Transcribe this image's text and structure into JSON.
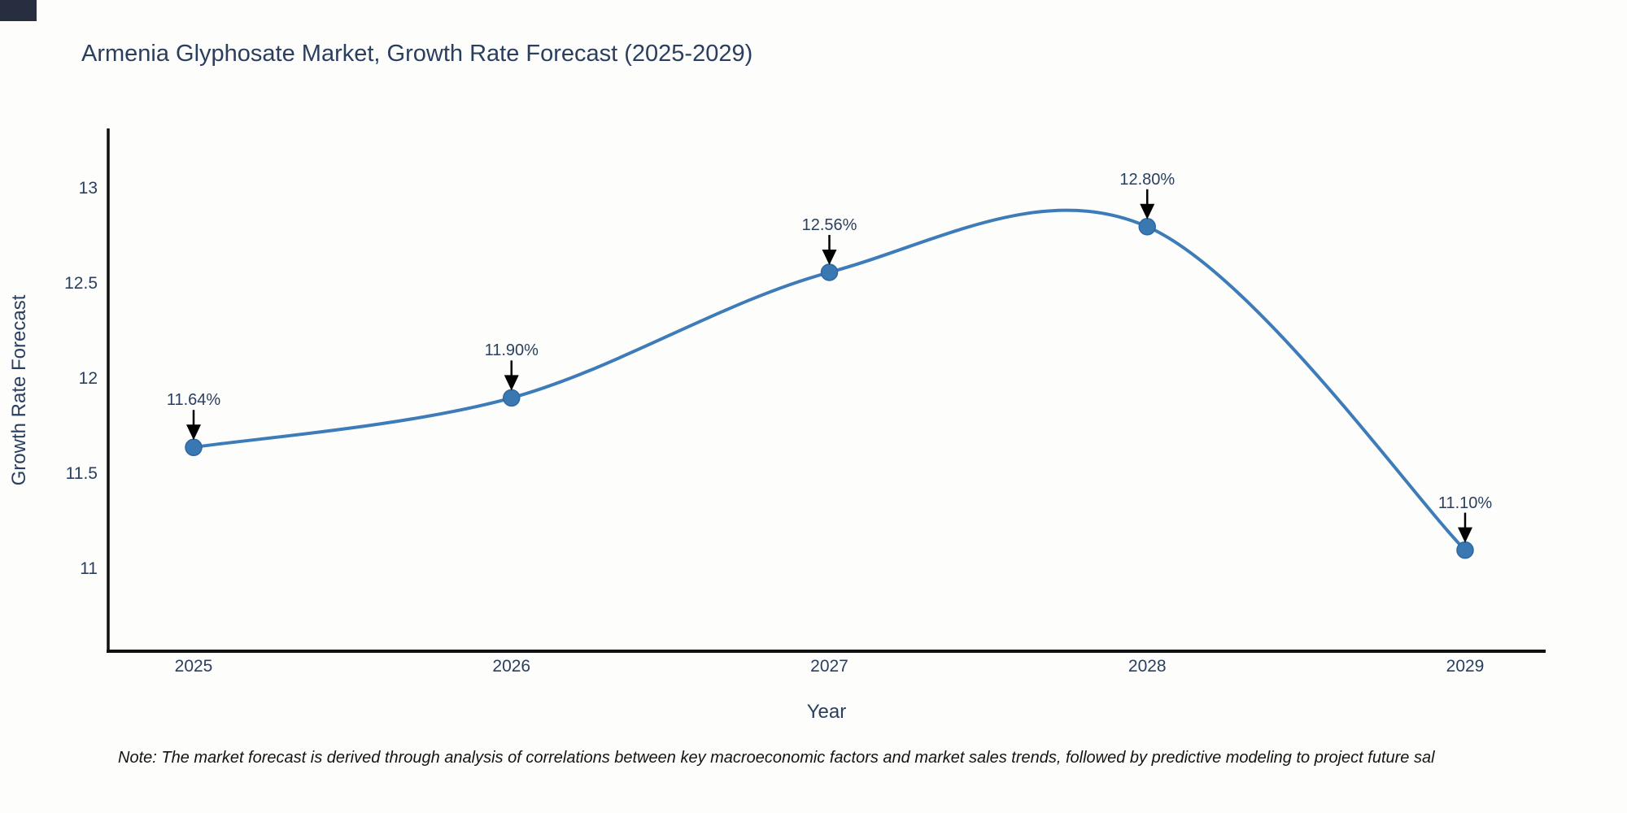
{
  "title": "Armenia Glyphosate Market, Growth Rate Forecast (2025-2029)",
  "note": "Note: The market forecast is derived through analysis of correlations between key macroeconomic factors and market sales trends, followed by predictive modeling to project future sal",
  "chart_data": {
    "type": "line",
    "title": "Armenia Glyphosate Market, Growth Rate Forecast (2025-2029)",
    "categories": [
      "2025",
      "2026",
      "2027",
      "2028",
      "2029"
    ],
    "series": [
      {
        "name": "Growth Rate Forecast",
        "values": [
          11.64,
          11.9,
          12.56,
          12.8,
          11.1
        ]
      }
    ],
    "values": [
      11.64,
      11.9,
      12.56,
      12.8,
      11.1
    ],
    "point_labels": [
      "11.64%",
      "11.90%",
      "12.56%",
      "12.80%",
      "11.10%"
    ],
    "xlabel": "Year",
    "ylabel": "Growth Rate Forecast",
    "y_tick_labels": [
      "13",
      "12.5",
      "12",
      "11.5",
      "11"
    ],
    "y_tick_values": [
      13,
      12.5,
      12,
      11.5,
      11
    ],
    "ylim": [
      10.57,
      13.31
    ],
    "line_shape": "spline",
    "markers": true,
    "annotation_arrows": true,
    "grid": false,
    "legend_position": "none"
  },
  "colors": {
    "line": "#3d7cb8",
    "marker": "#3a78b2",
    "marker_edge": "#2f68a0",
    "axis": "#101010",
    "arrow": "#000000",
    "text": "#2a3f5f",
    "note_text": "#141414",
    "corner_block": "#272e3f",
    "background": "#fdfdfc"
  }
}
